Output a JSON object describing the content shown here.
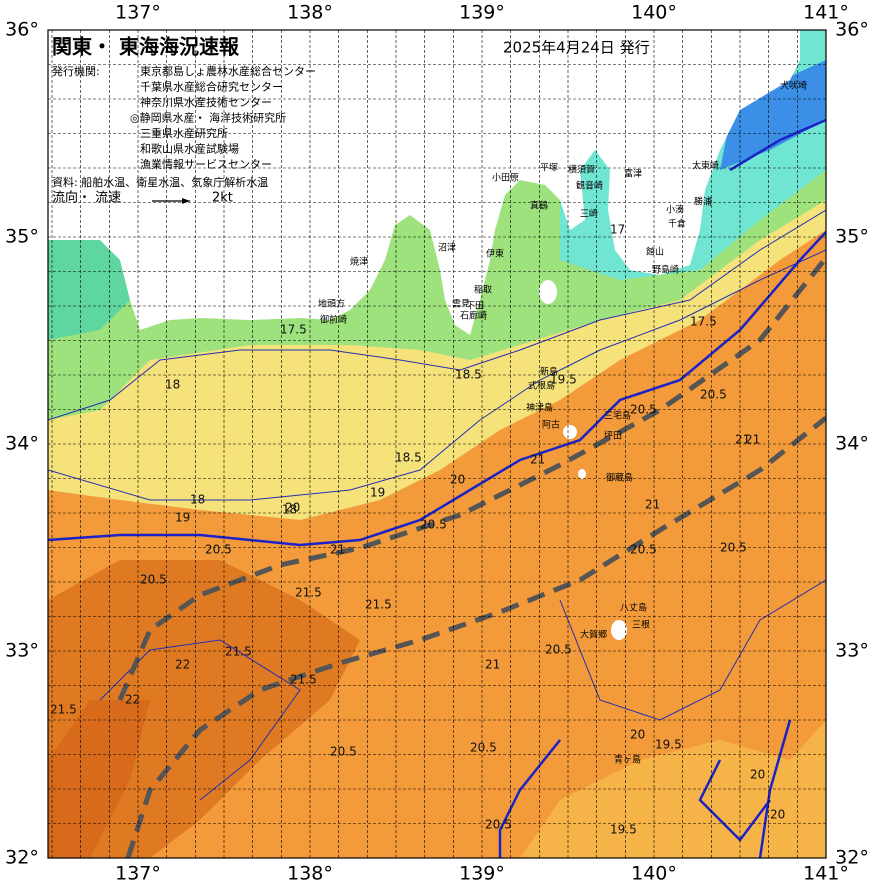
{
  "header": {
    "title": "関東・ 東海海況速報",
    "date": "2025年4月24日 発行",
    "issuer_label": "発行機関:",
    "issuers": [
      "東京都島しょ農林水産総合センター",
      "千葉県水産総合研究センター",
      "神奈川県水産技術センター",
      "◎静岡県水産・ 海洋技術研究所",
      "三重県水産研究所",
      "和歌山県水産試験場",
      "漁業情報サービスセンター"
    ],
    "source": "資料: 船舶水温、衛星水温、気象庁解析水温",
    "legend_label": "流向・ 流速",
    "legend_scale": "2kt"
  },
  "axes": {
    "top": [
      "137°",
      "138°",
      "139°",
      "140°",
      "141°"
    ],
    "bottom": [
      "137°",
      "138°",
      "139°",
      "140°",
      "141°"
    ],
    "left": [
      "36°",
      "35°",
      "34°",
      "33°",
      "32°"
    ],
    "right": [
      "36°",
      "35°",
      "34°",
      "33°",
      "32°"
    ]
  },
  "places": [
    "犬吠埼",
    "太東崎",
    "勝浦",
    "小湊",
    "千倉",
    "野島崎",
    "館山",
    "富津",
    "横須賀",
    "観音崎",
    "平塚",
    "小田原",
    "真鶴",
    "三崎",
    "伊東",
    "稲取",
    "下田",
    "石廊崎",
    "雲見",
    "沼津",
    "焼津",
    "地頭方",
    "御前崎",
    "新島",
    "式根島",
    "神津島",
    "三宅島",
    "阿古",
    "坪田",
    "御蔵島",
    "八丈島",
    "大賀郷",
    "三根",
    "青ヶ島"
  ],
  "contour_labels": [
    "17.5",
    "18",
    "18",
    "18.5",
    "18.5",
    "19",
    "19.5",
    "20",
    "20",
    "20.5",
    "20.5",
    "20.5",
    "20.5",
    "21",
    "21",
    "21",
    "21",
    "21.5",
    "21.5",
    "21.5",
    "21.5",
    "21.5",
    "22",
    "22",
    "20.5",
    "20.5",
    "20.5",
    "21",
    "20",
    "19.5",
    "20",
    "20",
    "19.5",
    "20.5",
    "21",
    "20.5",
    "20.5",
    "20.5",
    "18",
    "19",
    "17.5",
    "17"
  ]
}
